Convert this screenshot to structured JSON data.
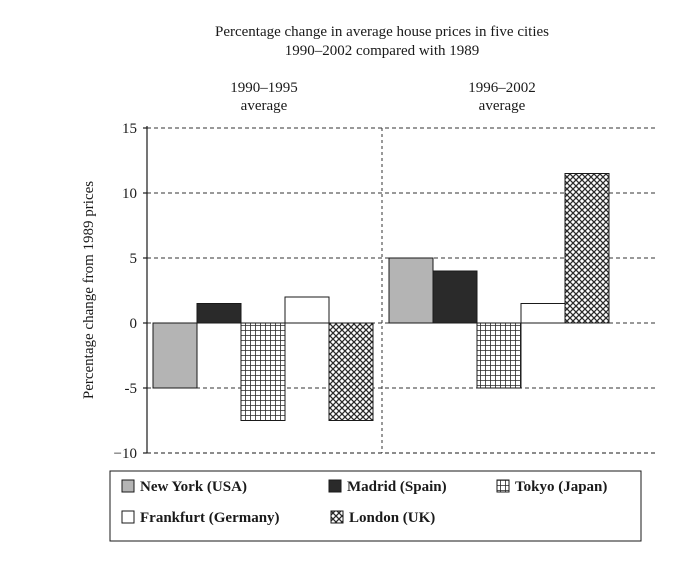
{
  "chart_data": {
    "type": "bar",
    "title": [
      "Percentage change in average house prices in five cities",
      "1990–2002 compared with 1989"
    ],
    "ylabel": "Percentage change from 1989 prices",
    "ylim": [
      -10,
      15
    ],
    "yticks": [
      15,
      10,
      5,
      0,
      -5,
      -10
    ],
    "yticklabels": [
      "15",
      "10",
      "5",
      "0",
      "-5",
      "−10"
    ],
    "grid": true,
    "groups": [
      {
        "label": [
          "1990–1995",
          "average"
        ]
      },
      {
        "label": [
          "1996–2002",
          "average"
        ]
      }
    ],
    "series": [
      {
        "name": "New York (USA)",
        "values": [
          -5,
          5
        ],
        "color": "#b4b4b4",
        "pattern": "solid"
      },
      {
        "name": "Madrid (Spain)",
        "values": [
          1.5,
          4
        ],
        "color": "#2a2a2a",
        "pattern": "solid"
      },
      {
        "name": "Tokyo (Japan)",
        "values": [
          -7.5,
          -5
        ],
        "color": "#3a3a3a",
        "pattern": "grid"
      },
      {
        "name": "Frankfurt (Germany)",
        "values": [
          2,
          1.5
        ],
        "color": "#ffffff",
        "pattern": "none"
      },
      {
        "name": "London (UK)",
        "values": [
          -7.5,
          11.5
        ],
        "color": "#3a3a3a",
        "pattern": "crosshatch"
      }
    ],
    "legend_position": "bottom",
    "legend_rows": [
      [
        0,
        1,
        2
      ],
      [
        3,
        4
      ]
    ]
  }
}
